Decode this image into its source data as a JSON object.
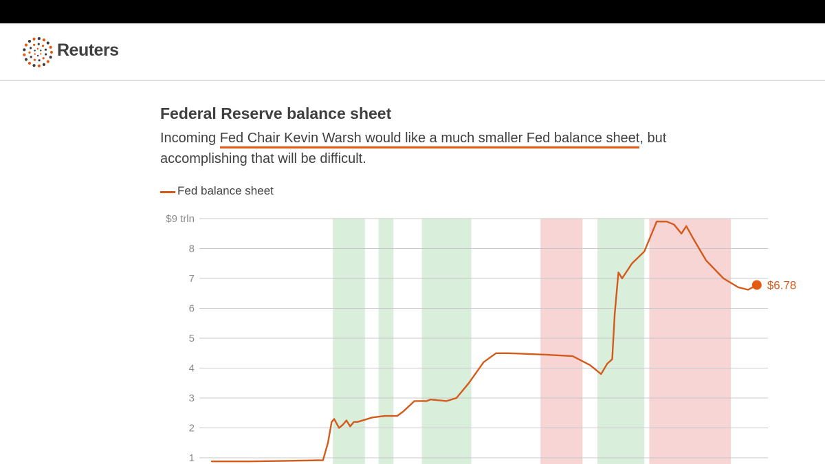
{
  "brand": {
    "name": "Reuters",
    "logo_icon": "reuters-dots-logo-icon"
  },
  "colors": {
    "line": "#d35a1a",
    "highlight": "#e35b12",
    "band_expansion": "#d9eedb",
    "band_contraction": "#f8d5d5",
    "grid": "#c8c8c8",
    "text": "#404040",
    "axis_text": "#8a8a8a"
  },
  "chart_data": {
    "type": "line",
    "title": "Federal Reserve balance sheet",
    "subtitle_parts": {
      "before": "Incoming ",
      "highlight": "Fed Chair Kevin Warsh would like a much smaller Fed balance sheet",
      "after": ", but accomplishing that will be difficult."
    },
    "legend": "Fed balance sheet",
    "legend_placement": "top-left",
    "ylim": [
      1,
      9
    ],
    "y_ticks": [
      "$9 trln",
      "8",
      "7",
      "6",
      "5",
      "4",
      "3",
      "2",
      "1"
    ],
    "grid": true,
    "end_label": "$6.78",
    "end_value": 6.78,
    "series": [
      {
        "name": "Fed balance sheet",
        "values": [
          [
            2004.0,
            0.88
          ],
          [
            2005.5,
            0.88
          ],
          [
            2007.0,
            0.9
          ],
          [
            2008.5,
            0.92
          ],
          [
            2008.7,
            1.5
          ],
          [
            2008.85,
            2.2
          ],
          [
            2008.95,
            2.3
          ],
          [
            2009.15,
            2.0
          ],
          [
            2009.3,
            2.1
          ],
          [
            2009.45,
            2.25
          ],
          [
            2009.6,
            2.05
          ],
          [
            2009.75,
            2.2
          ],
          [
            2009.9,
            2.2
          ],
          [
            2010.5,
            2.35
          ],
          [
            2011.0,
            2.4
          ],
          [
            2011.5,
            2.4
          ],
          [
            2011.75,
            2.55
          ],
          [
            2012.2,
            2.9
          ],
          [
            2012.7,
            2.9
          ],
          [
            2012.85,
            2.95
          ],
          [
            2013.5,
            2.9
          ],
          [
            2013.9,
            3.0
          ],
          [
            2014.4,
            3.5
          ],
          [
            2015.0,
            4.2
          ],
          [
            2015.5,
            4.5
          ],
          [
            2016.0,
            4.5
          ],
          [
            2017.5,
            4.45
          ],
          [
            2018.6,
            4.4
          ],
          [
            2019.3,
            4.1
          ],
          [
            2019.75,
            3.8
          ],
          [
            2020.0,
            4.15
          ],
          [
            2020.2,
            4.3
          ],
          [
            2020.3,
            5.8
          ],
          [
            2020.45,
            7.2
          ],
          [
            2020.6,
            7.0
          ],
          [
            2021.0,
            7.5
          ],
          [
            2021.5,
            7.9
          ],
          [
            2022.0,
            8.9
          ],
          [
            2022.4,
            8.9
          ],
          [
            2022.7,
            8.8
          ],
          [
            2023.0,
            8.5
          ],
          [
            2023.2,
            8.75
          ],
          [
            2023.5,
            8.3
          ],
          [
            2024.0,
            7.6
          ],
          [
            2024.7,
            7.0
          ],
          [
            2025.3,
            6.7
          ],
          [
            2025.7,
            6.62
          ],
          [
            2026.05,
            6.78
          ]
        ]
      }
    ],
    "bands": [
      {
        "type": "expansion",
        "start": 2008.9,
        "end": 2010.2
      },
      {
        "type": "expansion",
        "start": 2010.75,
        "end": 2011.35
      },
      {
        "type": "expansion",
        "start": 2012.5,
        "end": 2014.5
      },
      {
        "type": "contraction",
        "start": 2017.3,
        "end": 2019.0
      },
      {
        "type": "expansion",
        "start": 2019.6,
        "end": 2021.5
      },
      {
        "type": "contraction",
        "start": 2021.7,
        "end": 2025.0
      }
    ]
  }
}
